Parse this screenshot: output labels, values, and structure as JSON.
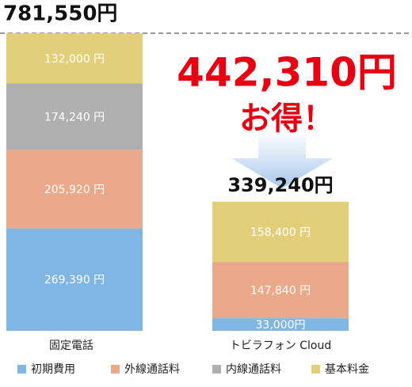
{
  "chart_data": {
    "type": "stacked_bar",
    "categories": [
      "固定電話",
      "トビラフォン Cloud"
    ],
    "series": [
      {
        "name": "初期費用",
        "color": "#7fb6e3",
        "values": [
          269390,
          33000
        ],
        "value_labels": [
          "269,390 円",
          "33,000円"
        ]
      },
      {
        "name": "外線通話料",
        "color": "#e9a98a",
        "values": [
          205920,
          147840
        ],
        "value_labels": [
          "205,920 円",
          "147,840 円"
        ]
      },
      {
        "name": "内線通話料",
        "color": "#b0b0b0",
        "values": [
          174240,
          null
        ],
        "value_labels": [
          "174,240 円",
          null
        ]
      },
      {
        "name": "基本料金",
        "color": "#e3cf7a",
        "values": [
          132000,
          158400
        ],
        "value_labels": [
          "132,000 円",
          "158,400 円"
        ]
      }
    ],
    "totals": [
      781550,
      339240
    ],
    "total_labels": [
      "781,550円",
      "339,240円"
    ],
    "savings": {
      "value": 442310,
      "label": "442,310円"
    },
    "savings_note": "お得！",
    "ylim": [
      0,
      781550
    ]
  }
}
